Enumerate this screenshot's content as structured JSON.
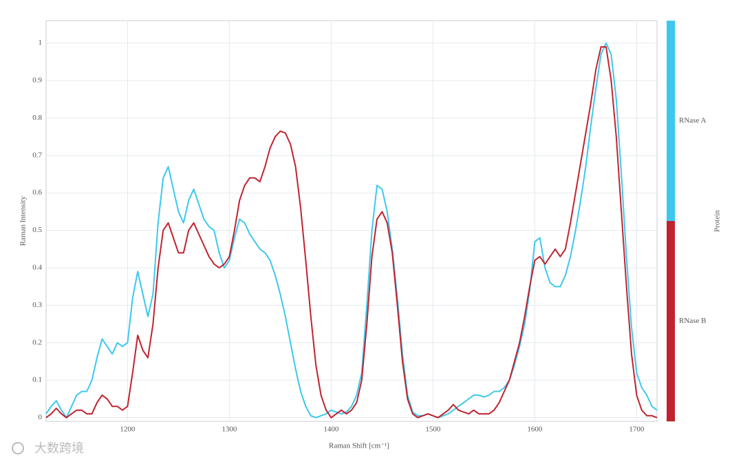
{
  "chart_data": {
    "type": "line",
    "x_label": "Raman Shift [cm⁻¹]",
    "y_label": "Raman Intensity",
    "legend_title": "Protein",
    "x": [
      1120,
      1125,
      1130,
      1135,
      1140,
      1145,
      1150,
      1155,
      1160,
      1165,
      1170,
      1175,
      1180,
      1185,
      1190,
      1195,
      1200,
      1205,
      1210,
      1215,
      1220,
      1225,
      1230,
      1235,
      1240,
      1245,
      1250,
      1255,
      1260,
      1265,
      1270,
      1275,
      1280,
      1285,
      1290,
      1295,
      1300,
      1305,
      1310,
      1315,
      1320,
      1325,
      1330,
      1335,
      1340,
      1345,
      1350,
      1355,
      1360,
      1365,
      1370,
      1375,
      1380,
      1385,
      1390,
      1395,
      1400,
      1405,
      1410,
      1415,
      1420,
      1425,
      1430,
      1435,
      1440,
      1445,
      1450,
      1455,
      1460,
      1465,
      1470,
      1475,
      1480,
      1485,
      1490,
      1495,
      1500,
      1505,
      1510,
      1515,
      1520,
      1525,
      1530,
      1535,
      1540,
      1545,
      1550,
      1555,
      1560,
      1565,
      1570,
      1575,
      1580,
      1585,
      1590,
      1595,
      1600,
      1605,
      1610,
      1615,
      1620,
      1625,
      1630,
      1635,
      1640,
      1645,
      1650,
      1655,
      1660,
      1665,
      1670,
      1675,
      1680,
      1685,
      1690,
      1695,
      1700,
      1705,
      1710,
      1715,
      1720
    ],
    "series": [
      {
        "name": "RNase A",
        "color": "#3cc8ec",
        "values": [
          0.01,
          0.03,
          0.045,
          0.02,
          0.0,
          0.03,
          0.06,
          0.07,
          0.07,
          0.1,
          0.16,
          0.21,
          0.19,
          0.17,
          0.2,
          0.19,
          0.2,
          0.32,
          0.39,
          0.33,
          0.27,
          0.33,
          0.52,
          0.64,
          0.67,
          0.61,
          0.55,
          0.52,
          0.58,
          0.61,
          0.57,
          0.53,
          0.51,
          0.5,
          0.44,
          0.4,
          0.42,
          0.48,
          0.53,
          0.52,
          0.49,
          0.47,
          0.45,
          0.44,
          0.42,
          0.38,
          0.33,
          0.27,
          0.2,
          0.13,
          0.07,
          0.03,
          0.005,
          0.0,
          0.005,
          0.01,
          0.02,
          0.015,
          0.01,
          0.015,
          0.03,
          0.06,
          0.12,
          0.3,
          0.5,
          0.62,
          0.61,
          0.55,
          0.45,
          0.32,
          0.17,
          0.06,
          0.015,
          0.005,
          0.005,
          0.01,
          0.005,
          0.0,
          0.005,
          0.01,
          0.02,
          0.03,
          0.04,
          0.05,
          0.06,
          0.06,
          0.055,
          0.06,
          0.07,
          0.07,
          0.08,
          0.1,
          0.14,
          0.19,
          0.25,
          0.34,
          0.47,
          0.48,
          0.4,
          0.36,
          0.35,
          0.35,
          0.38,
          0.43,
          0.5,
          0.58,
          0.67,
          0.78,
          0.88,
          0.97,
          1.0,
          0.97,
          0.85,
          0.65,
          0.43,
          0.24,
          0.12,
          0.08,
          0.06,
          0.03,
          0.02
        ]
      },
      {
        "name": "RNase B",
        "color": "#c0222f",
        "values": [
          0.0,
          0.01,
          0.025,
          0.01,
          0.0,
          0.01,
          0.02,
          0.02,
          0.01,
          0.01,
          0.04,
          0.06,
          0.05,
          0.03,
          0.03,
          0.02,
          0.03,
          0.12,
          0.22,
          0.18,
          0.16,
          0.25,
          0.4,
          0.5,
          0.52,
          0.48,
          0.44,
          0.44,
          0.5,
          0.52,
          0.49,
          0.46,
          0.43,
          0.41,
          0.4,
          0.41,
          0.43,
          0.5,
          0.58,
          0.62,
          0.64,
          0.64,
          0.63,
          0.67,
          0.72,
          0.75,
          0.765,
          0.76,
          0.73,
          0.67,
          0.56,
          0.42,
          0.27,
          0.14,
          0.06,
          0.02,
          0.0,
          0.01,
          0.02,
          0.01,
          0.02,
          0.04,
          0.1,
          0.25,
          0.43,
          0.53,
          0.55,
          0.52,
          0.44,
          0.3,
          0.15,
          0.05,
          0.01,
          0.0,
          0.005,
          0.01,
          0.005,
          0.0,
          0.01,
          0.02,
          0.035,
          0.02,
          0.015,
          0.01,
          0.02,
          0.01,
          0.01,
          0.01,
          0.02,
          0.04,
          0.07,
          0.1,
          0.15,
          0.2,
          0.27,
          0.35,
          0.42,
          0.43,
          0.41,
          0.43,
          0.45,
          0.43,
          0.45,
          0.52,
          0.6,
          0.68,
          0.76,
          0.84,
          0.93,
          0.99,
          0.99,
          0.9,
          0.75,
          0.55,
          0.35,
          0.17,
          0.06,
          0.02,
          0.005,
          0.005,
          0.0
        ]
      }
    ],
    "xlim": [
      1120,
      1720
    ],
    "xticks": [
      1200,
      1300,
      1400,
      1500,
      1600,
      1700
    ],
    "ylim": [
      -0.01,
      1.06
    ],
    "yticks": [
      0,
      0.1,
      0.2,
      0.3,
      0.4,
      0.5,
      0.6,
      0.7,
      0.8,
      0.9,
      1
    ],
    "grid": true
  },
  "watermark": "大数跨境"
}
